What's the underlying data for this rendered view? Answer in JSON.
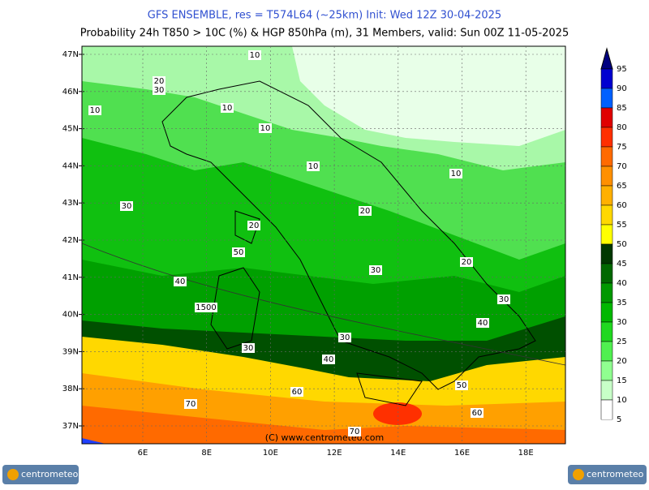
{
  "header": {
    "title": "GFS ENSEMBLE, res = T574L64 (~25km)   Init: Wed 12Z 30-04-2025",
    "subtitle": "Probability 24h T850 > 10C (%) & HGP 850hPa (m), 31 Members, valid: Sun 00Z 11-05-2025"
  },
  "map": {
    "lat_labels": [
      "47N",
      "46N",
      "45N",
      "44N",
      "43N",
      "42N",
      "41N",
      "40N",
      "39N",
      "38N",
      "37N"
    ],
    "lon_labels": [
      "6E",
      "8E",
      "10E",
      "12E",
      "14E",
      "16E",
      "18E"
    ],
    "contour_labels": [
      "10",
      "20",
      "30",
      "10",
      "10",
      "10",
      "10",
      "10",
      "30",
      "20",
      "20",
      "50",
      "20",
      "30",
      "40",
      "30",
      "1500",
      "40",
      "30",
      "30",
      "40",
      "50",
      "60",
      "70",
      "60",
      "70"
    ],
    "copyright": "(C) www.centrometeo.com"
  },
  "colorbar": {
    "labels": [
      95,
      90,
      85,
      80,
      75,
      70,
      65,
      60,
      55,
      50,
      45,
      40,
      35,
      30,
      25,
      20,
      15,
      10,
      5
    ]
  },
  "footer": {
    "logo_left": "centrometeo",
    "logo_right": "centrometeo"
  }
}
